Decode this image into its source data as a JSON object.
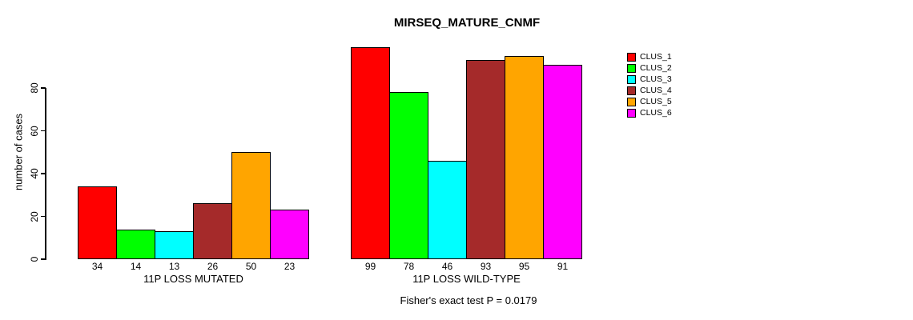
{
  "chart_data": {
    "type": "bar",
    "title": "MIRSEQ_MATURE_CNMF",
    "ylabel": "number of cases",
    "xlabel": "",
    "yticks": [
      0,
      20,
      40,
      60,
      80
    ],
    "ylim": [
      0,
      99
    ],
    "grid": false,
    "legend_position": "right",
    "bar_value_labels_shown": true,
    "categories": [
      "11P LOSS MUTATED",
      "11P LOSS WILD-TYPE"
    ],
    "series": [
      {
        "name": "CLUS_1",
        "color": "#FF0000",
        "values": [
          34,
          99
        ]
      },
      {
        "name": "CLUS_2",
        "color": "#00FF00",
        "values": [
          14,
          78
        ]
      },
      {
        "name": "CLUS_3",
        "color": "#00FFFF",
        "values": [
          13,
          46
        ]
      },
      {
        "name": "CLUS_4",
        "color": "#A52A2A",
        "values": [
          26,
          93
        ]
      },
      {
        "name": "CLUS_5",
        "color": "#FFA500",
        "values": [
          50,
          95
        ]
      },
      {
        "name": "CLUS_6",
        "color": "#FF00FF",
        "values": [
          23,
          91
        ]
      }
    ],
    "annotation": "Fisher's exact test P = 0.0179"
  }
}
